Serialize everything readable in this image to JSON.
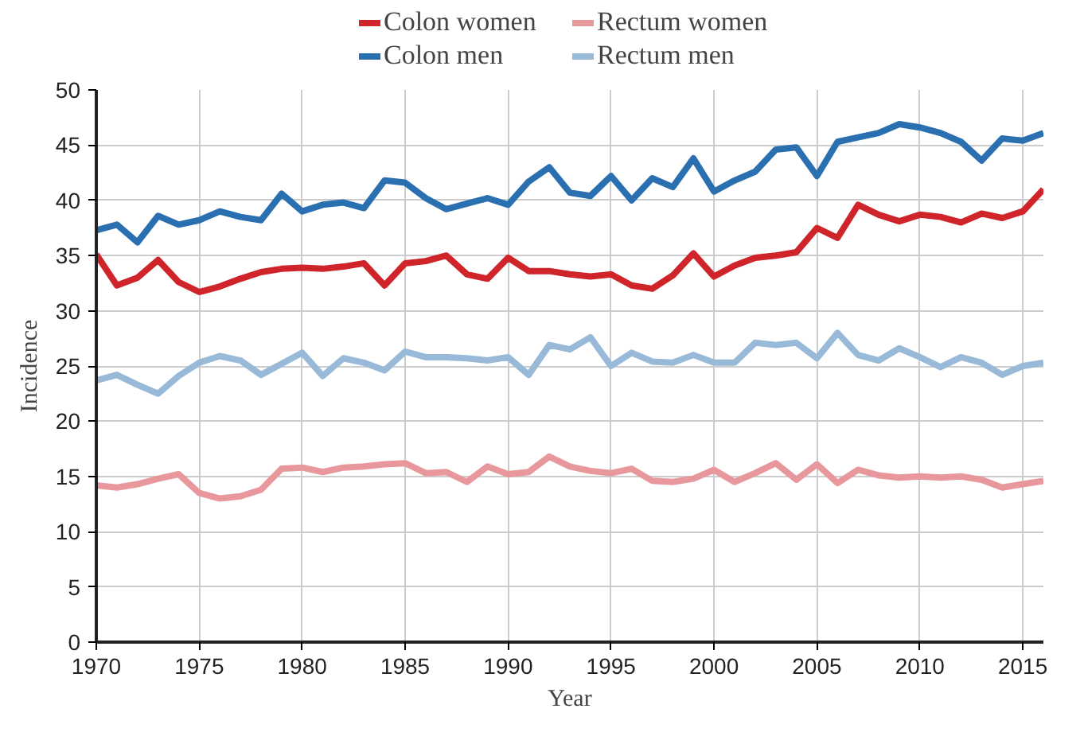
{
  "chart_data": {
    "type": "line",
    "xlabel": "Year",
    "ylabel": "Incidence",
    "x": [
      1970,
      1971,
      1972,
      1973,
      1974,
      1975,
      1976,
      1977,
      1978,
      1979,
      1980,
      1981,
      1982,
      1983,
      1984,
      1985,
      1986,
      1987,
      1988,
      1989,
      1990,
      1991,
      1992,
      1993,
      1994,
      1995,
      1996,
      1997,
      1998,
      1999,
      2000,
      2001,
      2002,
      2003,
      2004,
      2005,
      2006,
      2007,
      2008,
      2009,
      2010,
      2011,
      2012,
      2013,
      2014,
      2015,
      2016
    ],
    "series": [
      {
        "name": "Colon women",
        "color": "#d0242b",
        "values": [
          35.1,
          32.3,
          33,
          34.6,
          32.6,
          31.7,
          32.2,
          32.9,
          33.5,
          33.8,
          33.9,
          33.8,
          34,
          34.3,
          32.3,
          34.3,
          34.5,
          35,
          33.3,
          32.9,
          34.8,
          33.6,
          33.6,
          33.3,
          33.1,
          33.3,
          32.3,
          32,
          33.2,
          35.2,
          33.1,
          34.1,
          34.8,
          35,
          35.3,
          37.5,
          36.6,
          39.6,
          38.7,
          38.1,
          38.7,
          38.5,
          38,
          38.8,
          38.4,
          39,
          41
        ]
      },
      {
        "name": "Rectum women",
        "color": "#e8989c",
        "values": [
          14.2,
          14,
          14.3,
          14.8,
          15.2,
          13.5,
          13,
          13.2,
          13.8,
          15.7,
          15.8,
          15.4,
          15.8,
          15.9,
          16.1,
          16.2,
          15.3,
          15.4,
          14.5,
          15.9,
          15.2,
          15.4,
          16.8,
          15.9,
          15.5,
          15.3,
          15.7,
          14.6,
          14.5,
          14.8,
          15.6,
          14.5,
          15.3,
          16.2,
          14.7,
          16.1,
          14.4,
          15.6,
          15.1,
          14.9,
          15,
          14.9,
          15,
          14.7,
          14,
          14.3,
          14.6
        ]
      },
      {
        "name": "Colon men",
        "color": "#2a6fb0",
        "values": [
          37.3,
          37.8,
          36.2,
          38.6,
          37.8,
          38.2,
          39,
          38.5,
          38.2,
          40.6,
          39,
          39.6,
          39.8,
          39.3,
          41.8,
          41.6,
          40.2,
          39.2,
          39.7,
          40.2,
          39.6,
          41.7,
          43,
          40.7,
          40.4,
          42.2,
          40,
          42,
          41.2,
          43.8,
          40.8,
          41.8,
          42.6,
          44.6,
          44.8,
          42.2,
          45.3,
          45.7,
          46.1,
          46.9,
          46.6,
          46.1,
          45.3,
          43.6,
          45.6,
          45.4,
          46.1
        ]
      },
      {
        "name": "Rectum men",
        "color": "#98bad8",
        "values": [
          23.7,
          24.2,
          23.3,
          22.5,
          24.1,
          25.3,
          25.9,
          25.5,
          24.2,
          25.2,
          26.2,
          24.1,
          25.7,
          25.3,
          24.6,
          26.3,
          25.8,
          25.8,
          25.7,
          25.5,
          25.8,
          24.2,
          26.9,
          26.5,
          27.6,
          25,
          26.2,
          25.4,
          25.3,
          26,
          25.3,
          25.3,
          27.1,
          26.9,
          27.1,
          25.7,
          28,
          26,
          25.5,
          26.6,
          25.8,
          24.9,
          25.8,
          25.3,
          24.2,
          25,
          25.3
        ]
      }
    ],
    "xlim": [
      1970,
      2016
    ],
    "xticks": [
      1970,
      1975,
      1980,
      1985,
      1990,
      1995,
      2000,
      2005,
      2010,
      2015
    ],
    "ylim": [
      0,
      50
    ],
    "yticks": [
      0,
      5,
      10,
      15,
      20,
      25,
      30,
      35,
      40,
      45,
      50
    ],
    "grid": true,
    "legend": "top",
    "line_style": "solid",
    "marker": "none"
  }
}
